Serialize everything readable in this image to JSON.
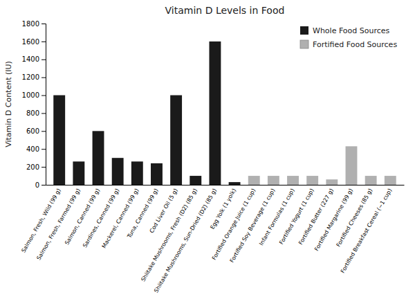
{
  "chart_data": {
    "type": "bar",
    "title": "Vitamin D Levels in Food",
    "ylabel": "Vitamin D Content (IU)",
    "categories": [
      "Salmon, Fresh, Wild (99 g)",
      "Salmon, Fresh, Farmed (99 g)",
      "Salmon, Canned (99 g)",
      "Sardines, Canned (99 g)",
      "Mackerel, Canned (99 g)",
      "Tuna, Canned (99 g)",
      "Cod Liver Oil (5 g)",
      "Shiitake Mushrooms, Fresh (D2) (85 g)",
      "Shiitake Mushrooms, Sun-Dried (D2) (85 g)",
      "Egg Yolk (1 yolk)",
      "Fortified Orange Juice (1 cup)",
      "Fortified Soy Beverage (1 cup)",
      "Infant Formulas (1 cup)",
      "Fortified Yogurt (1 cup)",
      "Fortified Butter (227 g)",
      "Fortified Margarine (99 g)",
      "Fortified Cheeses (85 g)",
      "Fortified Breakfast Cereal (~1 cup)"
    ],
    "series": [
      {
        "name": "Whole Food Sources",
        "color": "#1a1a1a",
        "values": [
          1000,
          260,
          600,
          300,
          260,
          240,
          1000,
          100,
          1600,
          30,
          null,
          null,
          null,
          null,
          null,
          null,
          null,
          null
        ]
      },
      {
        "name": "Fortified Food Sources",
        "color": "#b0b0b0",
        "values": [
          null,
          null,
          null,
          null,
          null,
          null,
          null,
          null,
          null,
          null,
          100,
          100,
          100,
          100,
          60,
          430,
          100,
          100
        ]
      }
    ],
    "stacked": true,
    "ylim": [
      0,
      1800
    ],
    "yticks": [
      0,
      200,
      400,
      600,
      800,
      1000,
      1200,
      1400,
      1600,
      1800
    ],
    "grid": false,
    "legend": "upper right"
  }
}
